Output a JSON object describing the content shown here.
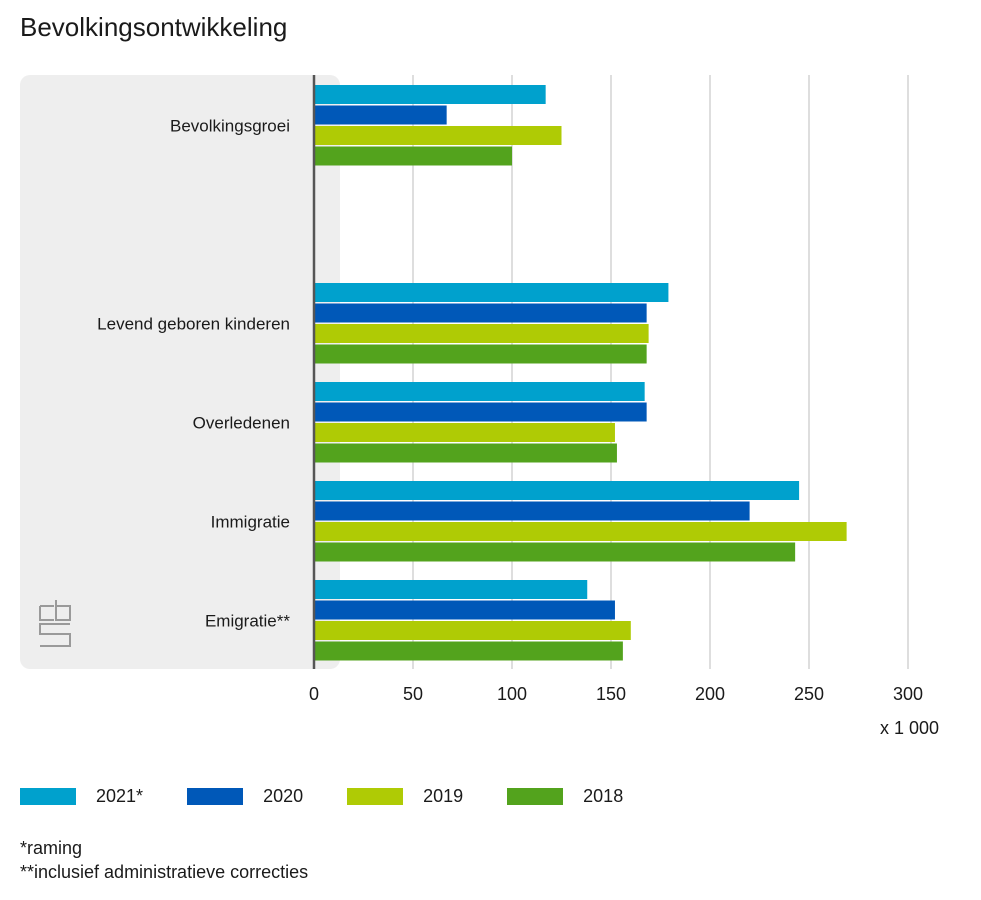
{
  "chart_data": {
    "type": "bar",
    "orientation": "horizontal",
    "title": "Bevolkingsontwikkeling",
    "unit_label": "x 1 000",
    "categories": [
      "Bevolkingsgroei",
      "Levend geboren kinderen",
      "Overledenen",
      "Immigratie",
      "Emigratie**"
    ],
    "series": [
      {
        "name": "2021*",
        "color": "#00a1cd",
        "values": [
          117,
          179,
          167,
          245,
          138
        ]
      },
      {
        "name": "2020",
        "color": "#0058b8",
        "values": [
          67,
          168,
          168,
          220,
          152
        ]
      },
      {
        "name": "2019",
        "color": "#afcb05",
        "values": [
          125,
          169,
          152,
          269,
          160
        ]
      },
      {
        "name": "2018",
        "color": "#53a31d",
        "values": [
          100,
          168,
          153,
          243,
          156
        ]
      }
    ],
    "xlim": [
      0,
      300
    ],
    "xticks": [
      0,
      50,
      100,
      150,
      200,
      250,
      300
    ],
    "grid": true,
    "legend_position": "bottom-left"
  },
  "notes": [
    "*raming",
    "**inclusief administratieve correcties"
  ],
  "logo_text": "cbs"
}
